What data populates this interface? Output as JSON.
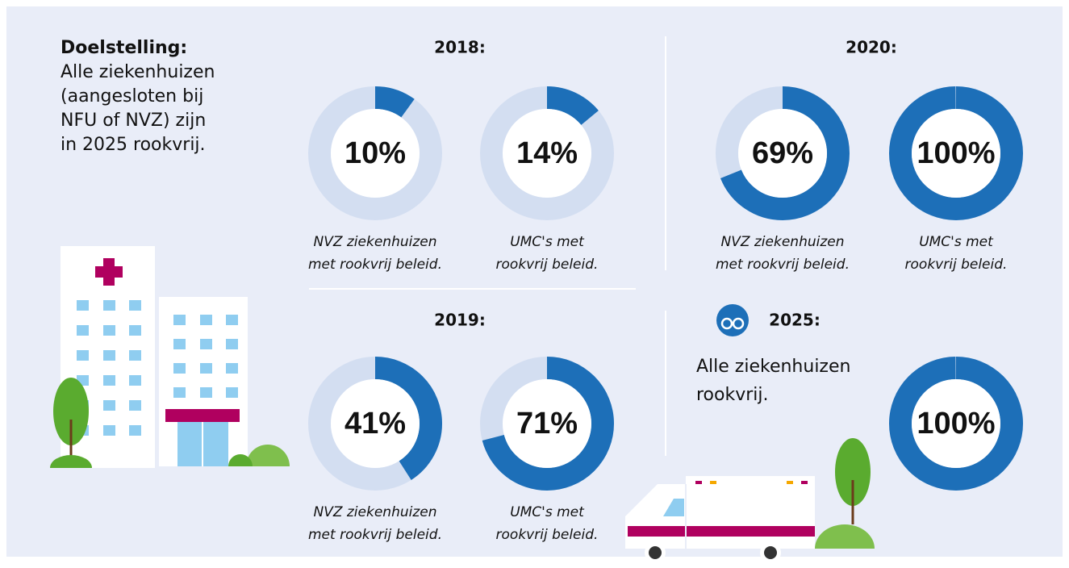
{
  "goal": {
    "title": "Doelstelling:",
    "lines": [
      "Alle ziekenhuizen",
      "(aangesloten bij",
      "NFU of NVZ) zijn",
      "in 2025 rookvrij."
    ]
  },
  "panels": [
    {
      "year": "2018:",
      "donuts": [
        {
          "value": 10,
          "value_label": "10%",
          "caption": [
            "NVZ ziekenhuizen",
            "met rookvrij beleid."
          ]
        },
        {
          "value": 14,
          "value_label": "14%",
          "caption": [
            "UMC's met",
            "rookvrij beleid."
          ]
        }
      ]
    },
    {
      "year": "2020:",
      "donuts": [
        {
          "value": 69,
          "value_label": "69%",
          "caption": [
            "NVZ ziekenhuizen",
            "met rookvrij beleid."
          ]
        },
        {
          "value": 100,
          "value_label": "100%",
          "caption": [
            "UMC's met",
            "rookvrij beleid."
          ]
        }
      ]
    },
    {
      "year": "2019:",
      "donuts": [
        {
          "value": 41,
          "value_label": "41%",
          "caption": [
            "NVZ ziekenhuizen",
            "met rookvrij beleid."
          ]
        },
        {
          "value": 71,
          "value_label": "71%",
          "caption": [
            "UMC's met",
            "rookvrij beleid."
          ]
        }
      ]
    }
  ],
  "outlook": {
    "year": "2025:",
    "text": [
      "Alle ziekenhuizen",
      "rookvrij."
    ],
    "donut": {
      "value": 100,
      "value_label": "100%"
    }
  }
}
